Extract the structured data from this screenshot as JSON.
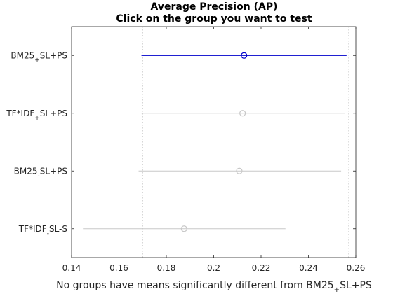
{
  "figure": {
    "title_line1": "Average Precision (AP)",
    "title_line2": "Click on the group you want to test",
    "footer": "No groups have means significantly different from BM25",
    "footer_sub": "+",
    "footer_tail": "SL+PS"
  },
  "chart_data": {
    "type": "scatter",
    "subtype": "multiple-comparison interval plot",
    "title": "Average Precision (AP)",
    "subtitle": "Click on the group you want to test",
    "xlabel": "No groups have means significantly different from BM25+SL+PS",
    "ylabel": "",
    "xlim": [
      0.14,
      0.26
    ],
    "x_ticks": [
      "0.14",
      "0.16",
      "0.18",
      "0.2",
      "0.22",
      "0.24",
      "0.26"
    ],
    "grid": false,
    "reference_lines": [
      0.17,
      0.257
    ],
    "groups": [
      {
        "label_main": "BM25",
        "label_sub": "+",
        "label_tail": "SL+PS",
        "mean": 0.2128,
        "lower": 0.1695,
        "upper": 0.2561,
        "selected": true
      },
      {
        "label_main": "TF*IDF",
        "label_sub": "+",
        "label_tail": "SL+PS",
        "mean": 0.2122,
        "lower": 0.1695,
        "upper": 0.2555,
        "selected": false
      },
      {
        "label_main": "BM25",
        "label_sub": "-",
        "label_tail": "SL+PS",
        "mean": 0.2108,
        "lower": 0.1683,
        "upper": 0.2538,
        "selected": false
      },
      {
        "label_main": "TF*IDF",
        "label_sub": "-",
        "label_tail": "SL-S",
        "mean": 0.1875,
        "lower": 0.1448,
        "upper": 0.2303,
        "selected": false
      }
    ],
    "colors": {
      "selected": "#0000cc",
      "unselected": "#c8c8c8",
      "reference": "#bfbfbf",
      "axis": "#262626"
    }
  }
}
